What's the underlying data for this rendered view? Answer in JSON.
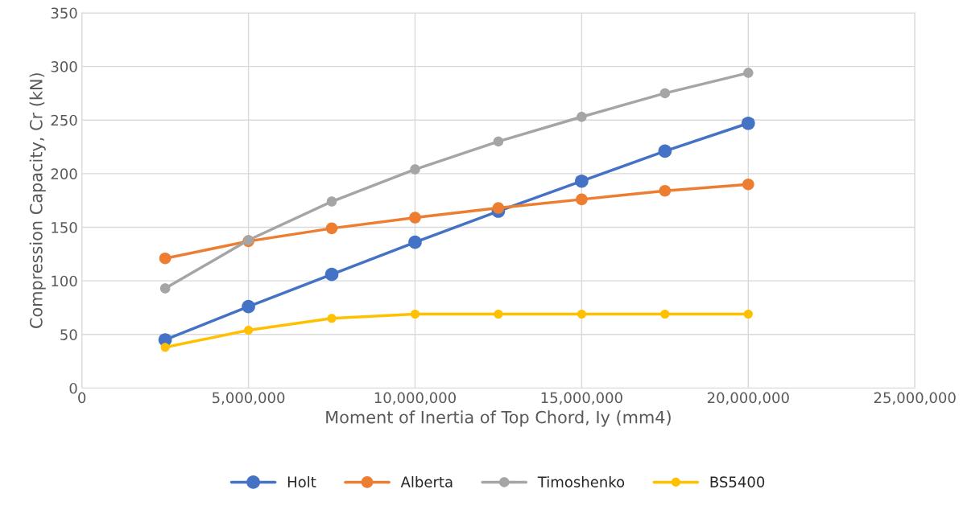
{
  "chart_data": {
    "type": "line",
    "xlabel": "Moment of Inertia of Top Chord, Iy (mm4)",
    "ylabel": "Compression Capacity, Cr (kN)",
    "x": [
      2500000,
      5000000,
      7500000,
      10000000,
      12500000,
      15000000,
      17500000,
      20000000
    ],
    "series": [
      {
        "name": "Holt",
        "color": "#4472c4",
        "values": [
          45,
          76,
          106,
          136,
          165,
          193,
          221,
          247
        ]
      },
      {
        "name": "Alberta",
        "color": "#ed7d31",
        "values": [
          121,
          137,
          149,
          159,
          168,
          176,
          184,
          190
        ]
      },
      {
        "name": "Timoshenko",
        "color": "#a5a5a5",
        "values": [
          93,
          138,
          174,
          204,
          230,
          253,
          275,
          294
        ]
      },
      {
        "name": "BS5400",
        "color": "#ffc000",
        "values": [
          38,
          54,
          65,
          69,
          69,
          69,
          69,
          69
        ]
      }
    ],
    "xlim": [
      0,
      25000000
    ],
    "xticks": [
      0,
      {
        "value": 5000000,
        "label": "5,000,000"
      },
      {
        "value": 10000000,
        "label": "10,000,000"
      },
      {
        "value": 15000000,
        "label": "15,000,000"
      },
      {
        "value": 20000000,
        "label": "20,000,000"
      },
      {
        "value": 25000000,
        "label": "25,000,000"
      }
    ],
    "ylim": [
      0,
      350
    ],
    "yticks": [
      0,
      50,
      100,
      150,
      200,
      250,
      300,
      350
    ],
    "grid": true,
    "legend": "bottom",
    "marker": "circle",
    "line_style": "solid"
  }
}
